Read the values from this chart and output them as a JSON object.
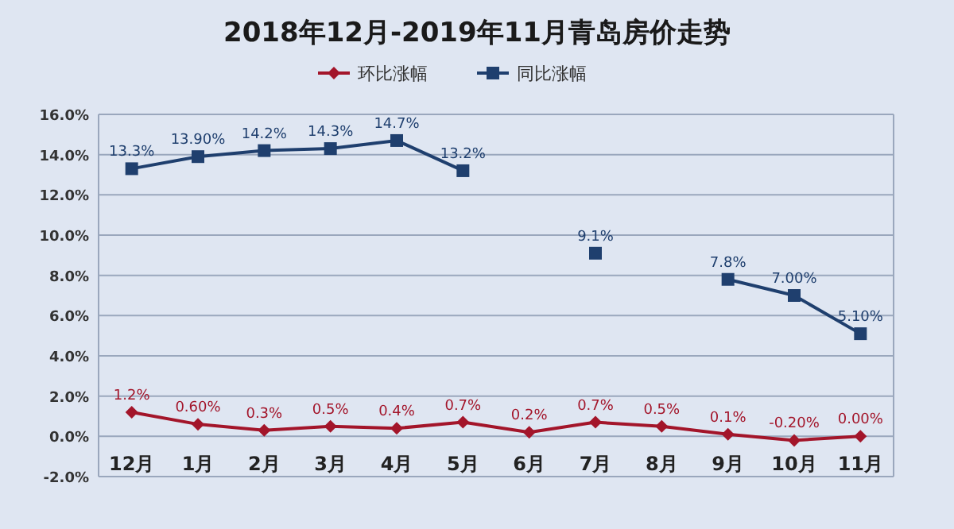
{
  "chart_data": {
    "type": "line",
    "title": "2018年12月-2019年11月青岛房价走势",
    "categories": [
      "12月",
      "1月",
      "2月",
      "3月",
      "4月",
      "5月",
      "6月",
      "7月",
      "8月",
      "9月",
      "10月",
      "11月"
    ],
    "series": [
      {
        "name": "环比涨幅",
        "color": "#a3152a",
        "marker": "diamond",
        "values": [
          1.2,
          0.6,
          0.3,
          0.5,
          0.4,
          0.7,
          0.2,
          0.7,
          0.5,
          0.1,
          -0.2,
          0.0
        ],
        "value_labels": [
          "1.2%",
          "0.60%",
          "0.3%",
          "0.5%",
          "0.4%",
          "0.7%",
          "0.2%",
          "0.7%",
          "0.5%",
          "0.1%",
          "-0.20%",
          "0.00%"
        ]
      },
      {
        "name": "同比涨幅",
        "color": "#1f3f6e",
        "marker": "square",
        "values": [
          13.3,
          13.9,
          14.2,
          14.3,
          14.7,
          13.2,
          null,
          9.1,
          null,
          7.8,
          7.0,
          5.1
        ],
        "value_labels": [
          "13.3%",
          "13.90%",
          "14.2%",
          "14.3%",
          "14.7%",
          "13.2%",
          null,
          "9.1%",
          null,
          "7.8%",
          "7.00%",
          "5.10%"
        ]
      }
    ],
    "ylim": [
      -2,
      16
    ],
    "yticks": [
      {
        "value": -2,
        "label": "-2.0%"
      },
      {
        "value": 0,
        "label": "0.0%"
      },
      {
        "value": 2,
        "label": "2.0%"
      },
      {
        "value": 4,
        "label": "4.0%"
      },
      {
        "value": 6,
        "label": "6.0%"
      },
      {
        "value": 8,
        "label": "8.0%"
      },
      {
        "value": 10,
        "label": "10.0%"
      },
      {
        "value": 12,
        "label": "12.0%"
      },
      {
        "value": 14,
        "label": "14.0%"
      },
      {
        "value": 16,
        "label": "16.0%"
      }
    ],
    "grid": "y",
    "legend": "top"
  }
}
